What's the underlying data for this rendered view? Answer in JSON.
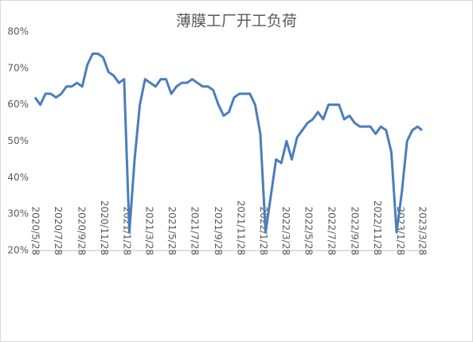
{
  "chart_data": {
    "type": "line",
    "title": "薄膜工厂开工负荷",
    "x": [
      "2020/5/28",
      "2020/6/11",
      "2020/6/25",
      "2020/7/9",
      "2020/7/23",
      "2020/8/6",
      "2020/8/20",
      "2020/9/3",
      "2020/9/17",
      "2020/10/1",
      "2020/10/15",
      "2020/10/29",
      "2020/11/12",
      "2020/11/26",
      "2020/12/10",
      "2020/12/24",
      "2021/1/7",
      "2021/1/21",
      "2021/2/4",
      "2021/2/18",
      "2021/3/4",
      "2021/3/18",
      "2021/4/1",
      "2021/4/15",
      "2021/4/29",
      "2021/5/13",
      "2021/5/27",
      "2021/6/10",
      "2021/6/24",
      "2021/7/8",
      "2021/7/22",
      "2021/8/5",
      "2021/8/19",
      "2021/9/2",
      "2021/9/16",
      "2021/9/30",
      "2021/10/14",
      "2021/10/28",
      "2021/11/11",
      "2021/11/25",
      "2021/12/9",
      "2021/12/23",
      "2022/1/6",
      "2022/1/20",
      "2022/2/3",
      "2022/2/17",
      "2022/3/3",
      "2022/3/17",
      "2022/3/31",
      "2022/4/14",
      "2022/4/28",
      "2022/5/12",
      "2022/5/26",
      "2022/6/9",
      "2022/6/23",
      "2022/7/7",
      "2022/7/21",
      "2022/8/4",
      "2022/8/18",
      "2022/9/1",
      "2022/9/15",
      "2022/9/29",
      "2022/10/13",
      "2022/10/27",
      "2022/11/10",
      "2022/11/24",
      "2022/12/8",
      "2022/12/22",
      "2023/1/5",
      "2023/1/19",
      "2023/2/2",
      "2023/2/16",
      "2023/3/2",
      "2023/3/16",
      "2023/3/28"
    ],
    "series": [
      {
        "color": "#4a7ebb",
        "values": [
          62,
          60,
          63,
          63,
          62,
          63,
          65,
          65,
          66,
          65,
          71,
          74,
          74,
          73,
          69,
          68,
          66,
          67,
          25,
          45,
          60,
          67,
          66,
          65,
          67,
          67,
          63,
          65,
          66,
          66,
          67,
          66,
          65,
          65,
          64,
          60,
          57,
          58,
          62,
          63,
          63,
          63,
          60,
          52,
          25,
          35,
          45,
          44,
          50,
          45,
          51,
          53,
          55,
          56,
          58,
          56,
          60,
          60,
          60,
          56,
          57,
          55,
          54,
          54,
          54,
          52,
          54,
          53,
          47,
          25,
          36,
          50,
          53,
          54,
          53
        ]
      }
    ],
    "xlim": [
      "2020/5/28",
      "2023/3/28"
    ],
    "xticks": [
      "2020/5/28",
      "2020/7/28",
      "2020/9/28",
      "2020/11/28",
      "2021/1/28",
      "2021/3/28",
      "2021/5/28",
      "2021/7/28",
      "2021/9/28",
      "2021/11/28",
      "2022/1/28",
      "2022/3/28",
      "2022/5/28",
      "2022/7/28",
      "2022/9/28",
      "2022/11/28",
      "2023/1/28",
      "2023/3/28"
    ],
    "ylim": [
      20,
      80
    ],
    "yticks": [
      {
        "value": 20,
        "label": "20%"
      },
      {
        "value": 30,
        "label": "30%"
      },
      {
        "value": 40,
        "label": "40%"
      },
      {
        "value": 50,
        "label": "50%"
      },
      {
        "value": 60,
        "label": "60%"
      },
      {
        "value": 70,
        "label": "70%"
      },
      {
        "value": 80,
        "label": "80%"
      }
    ],
    "grid": false
  }
}
